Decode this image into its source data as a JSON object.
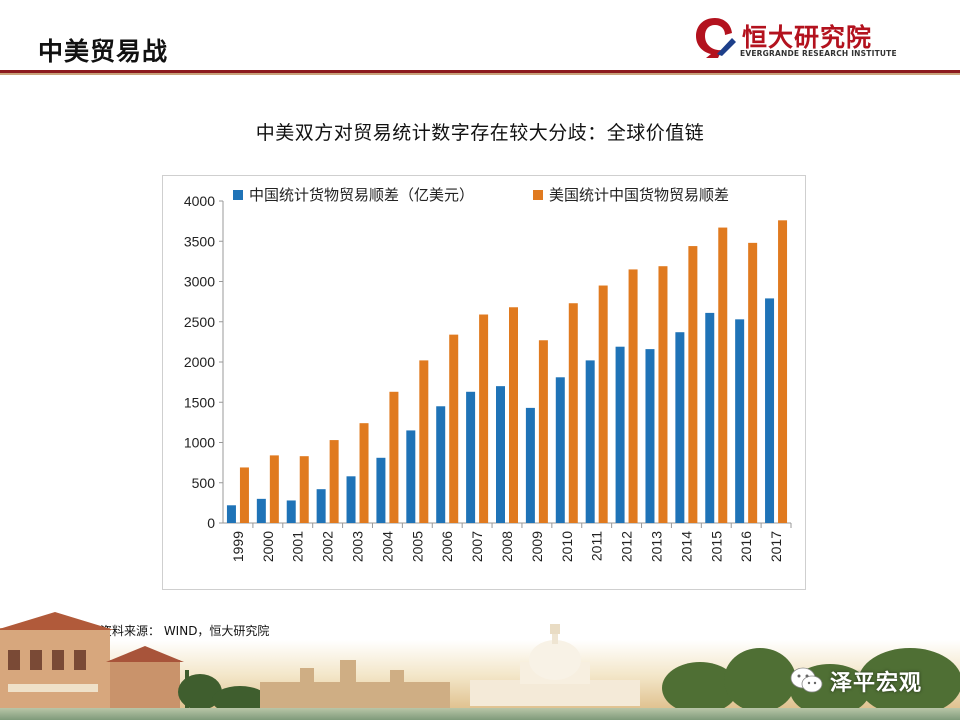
{
  "header": {
    "title": "中美贸易战",
    "logo_text": "恒大研究院",
    "logo_subtitle": "EVERGRANDE RESEARCH INSTITUTE"
  },
  "colors": {
    "series1": "#1f73b7",
    "series2": "#e07a1f",
    "brand_red": "#b3121e"
  },
  "chart_heading": "中美双方对贸易统计数字存在较大分歧：全球价值链",
  "chart_data": {
    "type": "bar",
    "title": "中美双方对贸易统计数字存在较大分歧：全球价值链",
    "xlabel": "",
    "ylabel": "",
    "ylim": [
      0,
      4000
    ],
    "yticks": [
      0,
      500,
      1000,
      1500,
      2000,
      2500,
      3000,
      3500,
      4000
    ],
    "grid": false,
    "legend": "top",
    "categories": [
      "1999",
      "2000",
      "2001",
      "2002",
      "2003",
      "2004",
      "2005",
      "2006",
      "2007",
      "2008",
      "2009",
      "2010",
      "2011",
      "2012",
      "2013",
      "2014",
      "2015",
      "2016",
      "2017"
    ],
    "series": [
      {
        "name": "中国统计货物贸易顺差（亿美元）",
        "color": "#1f73b7",
        "values": [
          220,
          300,
          280,
          420,
          580,
          810,
          1150,
          1450,
          1630,
          1700,
          1430,
          1810,
          2020,
          2190,
          2160,
          2370,
          2610,
          2530,
          2790
        ]
      },
      {
        "name": "美国统计中国货物贸易顺差",
        "color": "#e07a1f",
        "values": [
          690,
          840,
          830,
          1030,
          1240,
          1630,
          2020,
          2340,
          2590,
          2680,
          2270,
          2730,
          2950,
          3150,
          3190,
          3440,
          3670,
          3480,
          3760
        ]
      }
    ]
  },
  "source": "资料来源： WIND，恒大研究院",
  "watermark": {
    "icon": "wechat-icon",
    "text": "泽平宏观"
  }
}
